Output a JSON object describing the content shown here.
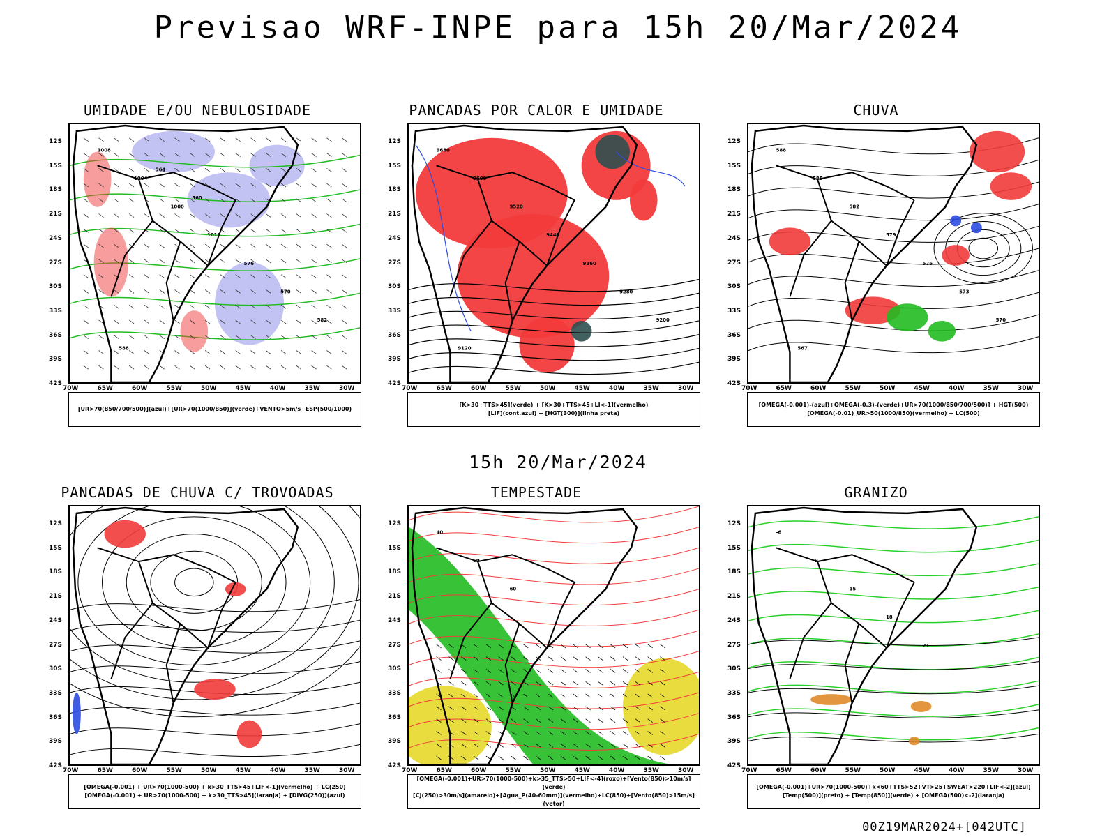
{
  "page": {
    "title": "Previsao WRF-INPE  para 15h 20/Mar/2024",
    "subtitle": "15h 20/Mar/2024",
    "footer": "00Z19MAR2024+[042UTC]"
  },
  "axes": {
    "lat_labels": [
      "12S",
      "15S",
      "18S",
      "21S",
      "24S",
      "27S",
      "30S",
      "33S",
      "36S",
      "39S",
      "42S"
    ],
    "lon_labels": [
      "70W",
      "65W",
      "60W",
      "55W",
      "50W",
      "45W",
      "40W",
      "35W",
      "30W"
    ]
  },
  "panels": [
    {
      "title": "UMIDADE E/OU NEBULOSIDADE",
      "legend": [
        "[UR>70(850/700/500)](azul)+[UR>70(1000/850)](verde)+VENTO>5m/s+ESP(500/1000)"
      ],
      "contour_labels": [
        "1008",
        "1004",
        "1000",
        "1012",
        "576",
        "570",
        "582",
        "588",
        "564",
        "560"
      ]
    },
    {
      "title": "PANCADAS POR CALOR E UMIDADE",
      "legend": [
        "[K>30+TTS>45](verde) + [K>30+TTS>45+LI<-1](vermelho)",
        "[LIF](cont.azul) + [HGT(300)](linha preta)"
      ],
      "contour_labels": [
        "9680",
        "9600",
        "9520",
        "9440",
        "9360",
        "9280",
        "9200",
        "9120"
      ]
    },
    {
      "title": "CHUVA",
      "legend": [
        "[OMEGA(-0.001)-(azul)+OMEGA(-0.3)-(verde)+UR>70(1000/850/700/500)] + HGT(500)",
        "[OMEGA(-0.01)_UR>50(1000/850)(vermelho) + LC(500)"
      ],
      "contour_labels": [
        "588",
        "585",
        "582",
        "579",
        "576",
        "573",
        "570",
        "567"
      ]
    },
    {
      "title": "PANCADAS DE CHUVA C/ TROVOADAS",
      "legend": [
        "[OMEGA(-0.001) + UR>70(1000-500) + k>30_TTS>45+LIF<-1](vermelho) + LC(250)",
        "[OMEGA(-0.001) + UR>70(1000-500) + k>30_TTS>45](laranja) + [DIVG(250)](azul)"
      ],
      "contour_labels": []
    },
    {
      "title": "TEMPESTADE",
      "legend": [
        "[OMEGA(-0.001)+UR>70(1000-500)+k>35_TTS>50+LIF<-4](roxo)+[Vento(850)>10m/s](verde)",
        "[CJ(250)>30m/s](amarelo)+[Agua_P(40-60mm)](vermelho)+LC(850)+[Vento(850)>15m/s](vetor)"
      ],
      "contour_labels": [
        "40",
        "50",
        "60"
      ]
    },
    {
      "title": "GRANIZO",
      "legend": [
        "[OMEGA(-0.001)+UR>70(1000-500)+k<60+TTS>52+VT>25+SWEAT>220+LIF<-2](azul)",
        "[Temp(500)](preto) + [Temp(850)](verde) + [OMEGA(500)<-2](laranja)"
      ],
      "contour_labels": [
        "-6",
        "-9",
        "15",
        "18",
        "21"
      ]
    }
  ],
  "colors": {
    "red": "#f23b3b",
    "green": "#22bb22",
    "blue": "#2b4be0",
    "lavender": "#b4b4f0",
    "darkteal": "#2f4f4f",
    "yellow": "#e6d82a",
    "orange": "#e08a2a",
    "brightgreen": "#2ad02a"
  }
}
